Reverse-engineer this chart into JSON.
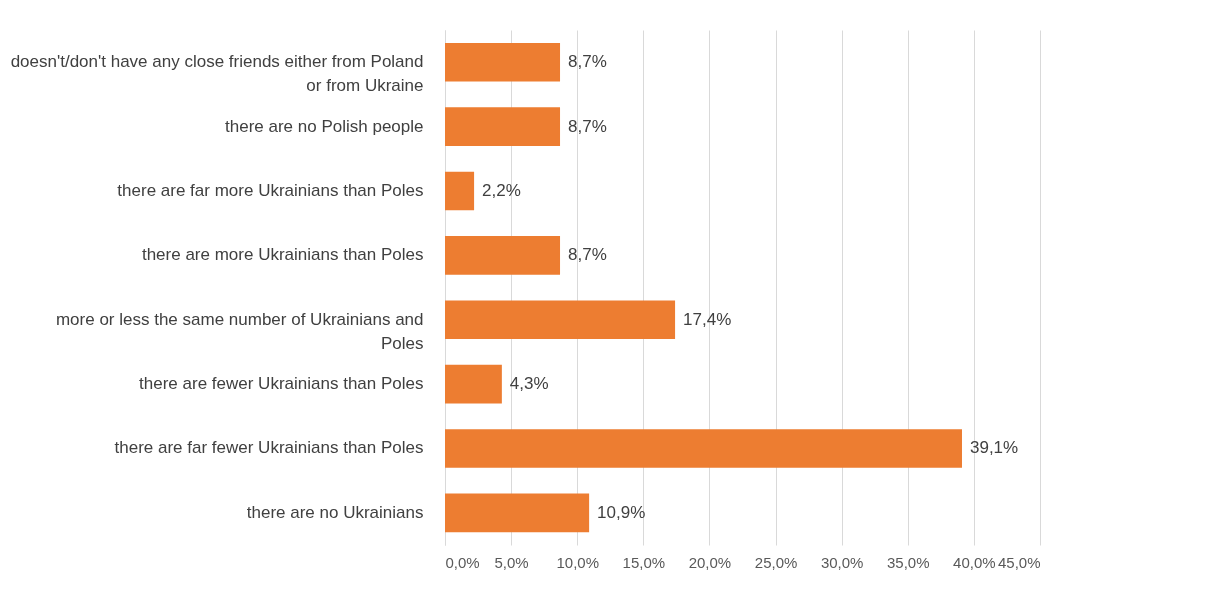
{
  "chart_data": {
    "type": "bar",
    "orientation": "horizontal",
    "categories": [
      "doesn't/don't have any close friends either from Poland or from Ukraine",
      "there are no Polish people",
      "there are far more Ukrainians than Poles",
      "there are more Ukrainians than Poles",
      "more or less the same number of Ukrainians and Poles",
      "there are fewer Ukrainians than Poles",
      "there are far fewer Ukrainians than Poles",
      "there are no Ukrainians"
    ],
    "values": [
      8.7,
      8.7,
      2.2,
      8.7,
      17.4,
      4.3,
      39.1,
      10.9
    ],
    "value_labels": [
      "8,7%",
      "8,7%",
      "2,2%",
      "8,7%",
      "17,4%",
      "4,3%",
      "39,1%",
      "10,9%"
    ],
    "color": "#ed7d31",
    "xlim": [
      0,
      45
    ],
    "xticks": [
      {
        "value": 0,
        "label": "0,0%"
      },
      {
        "value": 5,
        "label": "5,0%"
      },
      {
        "value": 10,
        "label": "10,0%"
      },
      {
        "value": 15,
        "label": "15,0%"
      },
      {
        "value": 20,
        "label": "20,0%"
      },
      {
        "value": 25,
        "label": "25,0%"
      },
      {
        "value": 30,
        "label": "30,0%"
      },
      {
        "value": 35,
        "label": "35,0%"
      },
      {
        "value": 40,
        "label": "40,0%"
      },
      {
        "value": 45,
        "label": "45,0%"
      }
    ],
    "grid": "x"
  }
}
